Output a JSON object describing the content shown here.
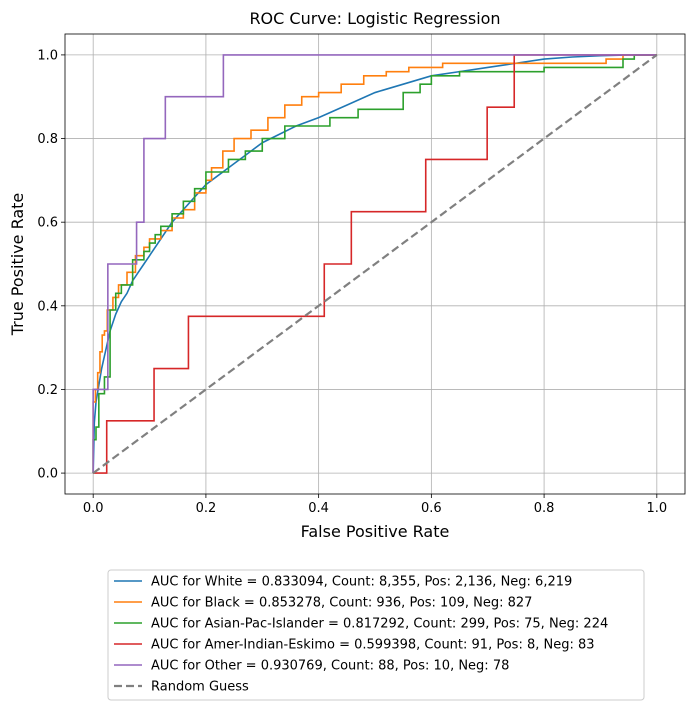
{
  "chart_data": {
    "type": "line",
    "title": "ROC Curve: Logistic Regression",
    "xlabel": "False Positive Rate",
    "ylabel": "True Positive Rate",
    "xlim": [
      -0.05,
      1.05
    ],
    "ylim": [
      -0.05,
      1.05
    ],
    "xticks": [
      0.0,
      0.2,
      0.4,
      0.6,
      0.8,
      1.0
    ],
    "xtick_labels": [
      "0.0",
      "0.2",
      "0.4",
      "0.6",
      "0.8",
      "1.0"
    ],
    "yticks": [
      0.0,
      0.2,
      0.4,
      0.6,
      0.8,
      1.0
    ],
    "ytick_labels": [
      "0.0",
      "0.2",
      "0.4",
      "0.6",
      "0.8",
      "1.0"
    ],
    "grid": true,
    "legend_position": "below plot",
    "series": [
      {
        "name": "AUC for White = 0.833094, Count: 8,355, Pos: 2,136, Neg: 6,219",
        "color": "#1f77b4",
        "step": false,
        "x": [
          0.0,
          0.002,
          0.005,
          0.01,
          0.015,
          0.02,
          0.025,
          0.03,
          0.04,
          0.05,
          0.06,
          0.07,
          0.08,
          0.09,
          0.1,
          0.12,
          0.14,
          0.16,
          0.18,
          0.2,
          0.22,
          0.25,
          0.28,
          0.3,
          0.33,
          0.36,
          0.4,
          0.45,
          0.5,
          0.55,
          0.6,
          0.65,
          0.7,
          0.75,
          0.8,
          0.85,
          0.9,
          0.95,
          1.0
        ],
        "y": [
          0.0,
          0.12,
          0.17,
          0.21,
          0.25,
          0.28,
          0.31,
          0.34,
          0.38,
          0.41,
          0.43,
          0.46,
          0.48,
          0.5,
          0.52,
          0.56,
          0.6,
          0.63,
          0.66,
          0.69,
          0.71,
          0.74,
          0.77,
          0.79,
          0.81,
          0.83,
          0.85,
          0.88,
          0.91,
          0.93,
          0.95,
          0.96,
          0.97,
          0.98,
          0.99,
          0.995,
          0.998,
          1.0,
          1.0
        ]
      },
      {
        "name": "AUC for Black = 0.853278, Count: 936, Pos: 109, Neg: 827",
        "color": "#ff7f0e",
        "step": true,
        "x": [
          0.0,
          0.0,
          0.004,
          0.004,
          0.008,
          0.008,
          0.012,
          0.012,
          0.016,
          0.016,
          0.02,
          0.02,
          0.025,
          0.025,
          0.035,
          0.035,
          0.045,
          0.045,
          0.06,
          0.06,
          0.075,
          0.075,
          0.09,
          0.09,
          0.1,
          0.1,
          0.12,
          0.12,
          0.14,
          0.14,
          0.16,
          0.16,
          0.18,
          0.18,
          0.2,
          0.2,
          0.21,
          0.21,
          0.23,
          0.23,
          0.25,
          0.25,
          0.28,
          0.28,
          0.31,
          0.31,
          0.34,
          0.34,
          0.37,
          0.37,
          0.4,
          0.4,
          0.44,
          0.44,
          0.48,
          0.48,
          0.52,
          0.52,
          0.56,
          0.56,
          0.62,
          0.62,
          0.74,
          0.74,
          0.91,
          0.91,
          0.94,
          0.94,
          1.0
        ],
        "y": [
          0.0,
          0.17,
          0.17,
          0.2,
          0.2,
          0.24,
          0.24,
          0.29,
          0.29,
          0.33,
          0.33,
          0.34,
          0.34,
          0.39,
          0.39,
          0.42,
          0.42,
          0.45,
          0.45,
          0.48,
          0.48,
          0.52,
          0.52,
          0.54,
          0.54,
          0.56,
          0.56,
          0.58,
          0.58,
          0.61,
          0.61,
          0.63,
          0.63,
          0.67,
          0.67,
          0.7,
          0.7,
          0.73,
          0.73,
          0.77,
          0.77,
          0.8,
          0.8,
          0.82,
          0.82,
          0.85,
          0.85,
          0.88,
          0.88,
          0.9,
          0.9,
          0.91,
          0.91,
          0.93,
          0.93,
          0.95,
          0.95,
          0.96,
          0.96,
          0.97,
          0.97,
          0.98,
          0.98,
          0.98,
          0.98,
          0.99,
          0.99,
          1.0,
          1.0
        ]
      },
      {
        "name": "AUC for Asian-Pac-Islander = 0.817292, Count: 299, Pos: 75, Neg: 224",
        "color": "#2ca02c",
        "step": true,
        "x": [
          0.0,
          0.0,
          0.005,
          0.005,
          0.01,
          0.01,
          0.02,
          0.02,
          0.03,
          0.03,
          0.04,
          0.04,
          0.05,
          0.05,
          0.07,
          0.07,
          0.09,
          0.09,
          0.1,
          0.1,
          0.11,
          0.11,
          0.12,
          0.12,
          0.14,
          0.14,
          0.16,
          0.16,
          0.18,
          0.18,
          0.2,
          0.2,
          0.24,
          0.24,
          0.27,
          0.27,
          0.3,
          0.3,
          0.34,
          0.34,
          0.42,
          0.42,
          0.47,
          0.47,
          0.55,
          0.55,
          0.58,
          0.58,
          0.6,
          0.6,
          0.65,
          0.65,
          0.8,
          0.8,
          0.94,
          0.94,
          0.96,
          0.96,
          1.0
        ],
        "y": [
          0.0,
          0.08,
          0.08,
          0.11,
          0.11,
          0.19,
          0.19,
          0.23,
          0.23,
          0.39,
          0.39,
          0.43,
          0.43,
          0.45,
          0.45,
          0.51,
          0.51,
          0.53,
          0.53,
          0.55,
          0.55,
          0.57,
          0.57,
          0.59,
          0.59,
          0.62,
          0.62,
          0.65,
          0.65,
          0.68,
          0.68,
          0.72,
          0.72,
          0.75,
          0.75,
          0.77,
          0.77,
          0.8,
          0.8,
          0.83,
          0.83,
          0.85,
          0.85,
          0.87,
          0.87,
          0.91,
          0.91,
          0.93,
          0.93,
          0.95,
          0.95,
          0.96,
          0.96,
          0.97,
          0.97,
          0.99,
          0.99,
          1.0,
          1.0
        ]
      },
      {
        "name": "AUC for Amer-Indian-Eskimo = 0.599398, Count: 91, Pos: 8, Neg: 83",
        "color": "#d62728",
        "step": true,
        "x": [
          0.0,
          0.024,
          0.024,
          0.108,
          0.108,
          0.169,
          0.169,
          0.41,
          0.41,
          0.458,
          0.458,
          0.59,
          0.59,
          0.699,
          0.699,
          0.747,
          0.747,
          1.0
        ],
        "y": [
          0.0,
          0.0,
          0.125,
          0.125,
          0.25,
          0.25,
          0.375,
          0.375,
          0.5,
          0.5,
          0.625,
          0.625,
          0.75,
          0.75,
          0.875,
          0.875,
          1.0,
          1.0
        ]
      },
      {
        "name": "AUC for Other = 0.930769, Count: 88, Pos: 10, Neg: 78",
        "color": "#9467bd",
        "step": true,
        "x": [
          0.0,
          0.0,
          0.026,
          0.026,
          0.077,
          0.077,
          0.09,
          0.09,
          0.128,
          0.128,
          0.231,
          0.231,
          1.0
        ],
        "y": [
          0.0,
          0.2,
          0.2,
          0.5,
          0.5,
          0.6,
          0.6,
          0.8,
          0.8,
          0.9,
          0.9,
          1.0,
          1.0
        ]
      },
      {
        "name": "Random Guess",
        "color": "#808080",
        "dashed": true,
        "step": false,
        "x": [
          0.0,
          1.0
        ],
        "y": [
          0.0,
          1.0
        ]
      }
    ]
  }
}
